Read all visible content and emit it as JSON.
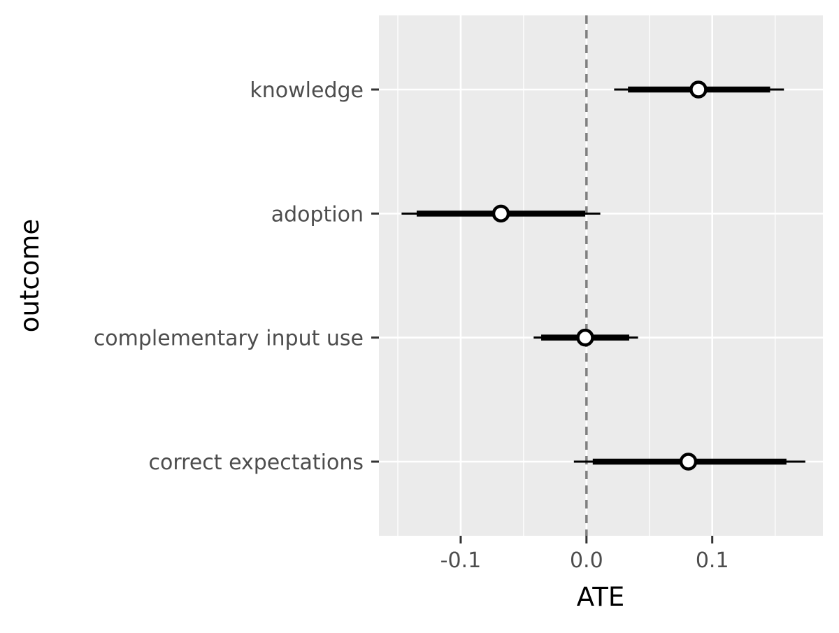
{
  "chart_data": {
    "type": "forest",
    "xlabel": "ATE",
    "ylabel": "outcome",
    "xlim": [
      -0.165,
      0.188
    ],
    "x_ticks": [
      {
        "value": -0.1,
        "label": "-0.1"
      },
      {
        "value": 0.0,
        "label": "0.0"
      },
      {
        "value": 0.1,
        "label": "0.1"
      }
    ],
    "x_minor_ticks": [
      -0.15,
      -0.05,
      0.05,
      0.15
    ],
    "reference_line": {
      "x": 0.0,
      "style": "dashed",
      "color": "#7f7f7f"
    },
    "categories": [
      "knowledge",
      "adoption",
      "complementary input use",
      "correct expectations"
    ],
    "estimates": [
      {
        "outcome": "knowledge",
        "estimate": 0.089,
        "inner_ci": [
          0.033,
          0.146
        ],
        "outer_ci": [
          0.022,
          0.157
        ]
      },
      {
        "outcome": "adoption",
        "estimate": -0.068,
        "inner_ci": [
          -0.135,
          -0.001
        ],
        "outer_ci": [
          -0.147,
          0.011
        ]
      },
      {
        "outcome": "complementary input use",
        "estimate": -0.001,
        "inner_ci": [
          -0.036,
          0.034
        ],
        "outer_ci": [
          -0.042,
          0.041
        ]
      },
      {
        "outcome": "correct expectations",
        "estimate": 0.081,
        "inner_ci": [
          0.005,
          0.159
        ],
        "outer_ci": [
          -0.01,
          0.174
        ]
      }
    ],
    "grid": true,
    "colors": {
      "panel_background": "#ebebeb",
      "grid_line": "#ffffff",
      "mark": "#000000",
      "point_fill": "#ffffff"
    }
  }
}
